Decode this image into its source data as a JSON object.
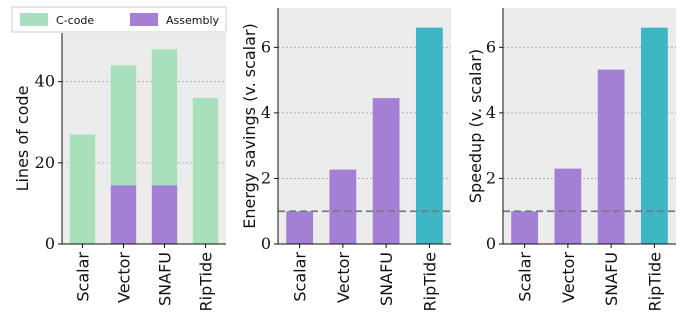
{
  "colors": {
    "c_code": "#a8dfbd",
    "assembly": "#a480d4",
    "riptide": "#3db7c5",
    "panel_bg": "#ececec",
    "grid": "#a8a8a8",
    "baseline": "#7a7a7a"
  },
  "legend": {
    "items": [
      {
        "label": "C-code",
        "color_key": "c_code"
      },
      {
        "label": "Assembly",
        "color_key": "assembly"
      }
    ],
    "placement": "top-left"
  },
  "chart_data": [
    {
      "type": "bar",
      "stacked": true,
      "categories": [
        "Scalar",
        "Vector",
        "SNAFU",
        "RipTide"
      ],
      "series": [
        {
          "name": "C-code",
          "values": [
            27,
            29.5,
            33.5,
            36
          ]
        },
        {
          "name": "Assembly",
          "values": [
            0,
            14.5,
            14.5,
            0
          ]
        }
      ],
      "title": "",
      "xlabel": "",
      "ylabel": "Lines of code",
      "ylim": [
        0,
        52
      ],
      "yticks": [
        0,
        20,
        40
      ],
      "grid": true
    },
    {
      "type": "bar",
      "categories": [
        "Scalar",
        "Vector",
        "SNAFU",
        "RipTide"
      ],
      "values": [
        1.0,
        2.27,
        4.45,
        6.6
      ],
      "bar_colors": [
        "assembly",
        "assembly",
        "assembly",
        "riptide"
      ],
      "title": "",
      "xlabel": "",
      "ylabel": "Energy savings (v. scalar)",
      "ylim": [
        0,
        7.2
      ],
      "yticks": [
        0,
        2,
        4,
        6
      ],
      "baseline": 1.0,
      "grid": true
    },
    {
      "type": "bar",
      "categories": [
        "Scalar",
        "Vector",
        "SNAFU",
        "RipTide"
      ],
      "values": [
        1.0,
        2.3,
        5.32,
        6.6
      ],
      "bar_colors": [
        "assembly",
        "assembly",
        "assembly",
        "riptide"
      ],
      "title": "",
      "xlabel": "",
      "ylabel": "Speedup (v. scalar)",
      "ylim": [
        0,
        7.2
      ],
      "yticks": [
        0,
        2,
        4,
        6
      ],
      "baseline": 1.0,
      "grid": true
    }
  ]
}
